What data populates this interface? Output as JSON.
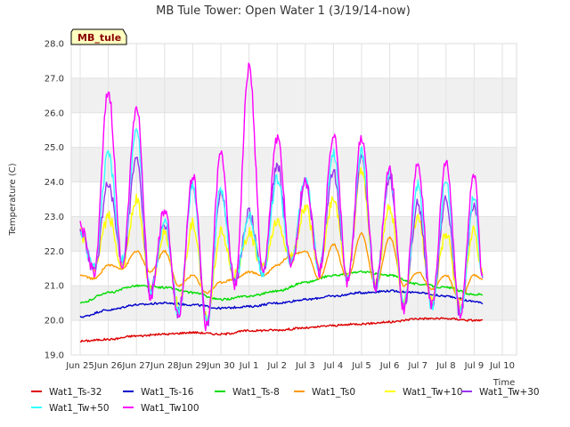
{
  "chart_data": {
    "type": "line",
    "title": "MB Tule Tower: Open Water 1 (3/19/14-now)",
    "xlabel": "Time",
    "ylabel": "Temperature (C)",
    "ylim": [
      19.0,
      28.0
    ],
    "xlim": [
      0,
      16
    ],
    "y_ticks": [
      "19.0",
      "20.0",
      "21.0",
      "22.0",
      "23.0",
      "24.0",
      "25.0",
      "26.0",
      "27.0",
      "28.0"
    ],
    "x_ticks": [
      {
        "label": "Jun 25",
        "value": 0
      },
      {
        "label": "Jun 26",
        "value": 1
      },
      {
        "label": "Jun 27",
        "value": 2
      },
      {
        "label": "Jun 28",
        "value": 3
      },
      {
        "label": "Jun 29",
        "value": 4
      },
      {
        "label": "Jun 30",
        "value": 5
      },
      {
        "label": "Jul 1",
        "value": 6
      },
      {
        "label": "Jul 2",
        "value": 7
      },
      {
        "label": "Jul 3",
        "value": 8
      },
      {
        "label": "Jul 4",
        "value": 9
      },
      {
        "label": "Jul 5",
        "value": 10
      },
      {
        "label": "Jul 6",
        "value": 11
      },
      {
        "label": "Jul 7",
        "value": 12
      },
      {
        "label": "Jul 8",
        "value": 13
      },
      {
        "label": "Jul 9",
        "value": 14
      },
      {
        "label": "Jul 10",
        "value": 15
      }
    ],
    "grid": true,
    "station_tag": "MB_tule",
    "daily_peaks_tw100": [
      26.6,
      26.2,
      23.2,
      24.2,
      24.8,
      27.3,
      25.3,
      24.1,
      25.4,
      25.3,
      24.4,
      24.5,
      24.6,
      24.3
    ],
    "daily_minima_tw100": [
      21.4,
      21.6,
      20.7,
      20.1,
      19.8,
      21.0,
      21.3,
      21.5,
      21.4,
      21.1,
      21.0,
      20.3,
      20.4,
      20.2
    ],
    "series": [
      {
        "name": "Wat1_Ts-32",
        "color": "#dd0000",
        "x": [
          0,
          1,
          2,
          3,
          4,
          5,
          6,
          7,
          8,
          9,
          10,
          11,
          12,
          13,
          14,
          14.3
        ],
        "values": [
          19.4,
          19.45,
          19.55,
          19.6,
          19.65,
          19.6,
          19.7,
          19.72,
          19.78,
          19.85,
          19.9,
          19.95,
          20.05,
          20.05,
          20.0,
          20.0
        ]
      },
      {
        "name": "Wat1_Ts-16",
        "color": "#0000cc",
        "x": [
          0,
          1,
          2,
          3,
          4,
          5,
          6,
          7,
          8,
          9,
          10,
          11,
          12,
          13,
          14,
          14.3
        ],
        "values": [
          20.1,
          20.3,
          20.45,
          20.5,
          20.45,
          20.35,
          20.4,
          20.5,
          20.6,
          20.7,
          20.8,
          20.85,
          20.8,
          20.7,
          20.55,
          20.5
        ]
      },
      {
        "name": "Wat1_Ts-8",
        "color": "#00dd00",
        "x": [
          0,
          1,
          2,
          3,
          4,
          5,
          6,
          7,
          8,
          9,
          10,
          11,
          12,
          13,
          14,
          14.3
        ],
        "values": [
          20.5,
          20.8,
          21.0,
          20.95,
          20.8,
          20.6,
          20.7,
          20.85,
          21.1,
          21.3,
          21.4,
          21.3,
          21.05,
          20.95,
          20.75,
          20.75
        ]
      },
      {
        "name": "Wat1_Ts0",
        "color": "#ff9900",
        "x": [
          0,
          0.5,
          1,
          1.5,
          2,
          2.5,
          3,
          3.5,
          4,
          4.5,
          5,
          5.5,
          6,
          6.5,
          7,
          7.5,
          8,
          8.5,
          9,
          9.5,
          10,
          10.5,
          11,
          11.5,
          12,
          12.5,
          13,
          13.5,
          14,
          14.3
        ],
        "values": [
          21.3,
          21.2,
          21.6,
          21.5,
          22.0,
          21.4,
          22.0,
          21.0,
          21.3,
          20.8,
          21.1,
          21.2,
          21.4,
          21.3,
          21.6,
          21.9,
          22.0,
          21.2,
          22.2,
          21.2,
          22.5,
          21.0,
          22.4,
          21.0,
          21.4,
          20.9,
          21.3,
          20.6,
          21.3,
          21.2
        ]
      },
      {
        "name": "Wat1_Tw+10",
        "color": "#ffff00",
        "x": [
          0,
          0.5,
          1,
          1.5,
          2,
          2.5,
          3,
          3.5,
          4,
          4.5,
          5,
          5.5,
          6,
          6.5,
          7,
          7.5,
          8,
          8.5,
          9,
          9.5,
          10,
          10.5,
          11,
          11.5,
          12,
          12.5,
          13,
          13.5,
          14,
          14.3
        ],
        "values": [
          22.5,
          21.4,
          23.0,
          21.6,
          23.5,
          20.9,
          22.6,
          20.4,
          22.8,
          20.1,
          22.6,
          21.3,
          22.5,
          21.5,
          22.8,
          21.8,
          23.3,
          21.5,
          23.5,
          21.3,
          24.3,
          21.1,
          23.3,
          20.6,
          23.0,
          20.6,
          22.5,
          20.4,
          22.6,
          21.3
        ]
      },
      {
        "name": "Wat1_Tw+30",
        "color": "#9933ee",
        "x": [
          0,
          0.5,
          1,
          1.5,
          2,
          2.5,
          3,
          3.5,
          4,
          4.5,
          5,
          5.5,
          6,
          6.5,
          7,
          7.5,
          8,
          8.5,
          9,
          9.5,
          10,
          10.5,
          11,
          11.5,
          12,
          12.5,
          13,
          13.5,
          14,
          14.3
        ],
        "values": [
          22.6,
          21.4,
          24.0,
          21.6,
          24.6,
          20.8,
          22.8,
          20.2,
          23.9,
          19.9,
          23.7,
          21.1,
          23.1,
          21.4,
          24.5,
          21.6,
          24.0,
          21.5,
          24.3,
          21.2,
          24.7,
          21.0,
          24.2,
          20.4,
          23.4,
          20.4,
          23.5,
          20.2,
          23.4,
          21.2
        ]
      },
      {
        "name": "Wat1_Tw+50",
        "color": "#33ffff",
        "x": [
          0,
          0.5,
          1,
          1.5,
          2,
          2.5,
          3,
          3.5,
          4,
          4.5,
          5,
          5.5,
          6,
          6.5,
          7,
          7.5,
          8,
          8.5,
          9,
          9.5,
          10,
          10.5,
          11,
          11.5,
          12,
          12.5,
          13,
          13.5,
          14,
          14.3
        ],
        "values": [
          22.6,
          21.5,
          24.8,
          21.7,
          25.5,
          20.8,
          22.9,
          20.2,
          23.9,
          19.9,
          23.8,
          21.1,
          23.0,
          21.4,
          24.1,
          21.6,
          24.1,
          21.5,
          24.8,
          21.2,
          24.9,
          21.0,
          24.3,
          20.4,
          23.9,
          20.4,
          24.0,
          20.2,
          23.6,
          21.2
        ]
      },
      {
        "name": "Wat1_Tw100",
        "color": "#ff00ff",
        "x": [
          0,
          0.5,
          1,
          1.5,
          2,
          2.5,
          3,
          3.5,
          4,
          4.5,
          5,
          5.5,
          6,
          6.5,
          7,
          7.5,
          8,
          8.5,
          9,
          9.5,
          10,
          10.5,
          11,
          11.5,
          12,
          12.5,
          13,
          13.5,
          14,
          14.3
        ],
        "values": [
          22.7,
          21.4,
          26.6,
          21.6,
          26.2,
          20.7,
          23.2,
          20.1,
          24.2,
          19.8,
          24.8,
          21.0,
          27.3,
          21.3,
          25.3,
          21.5,
          24.1,
          21.4,
          25.4,
          21.1,
          25.3,
          21.0,
          24.4,
          20.3,
          24.5,
          20.4,
          24.6,
          20.2,
          24.3,
          21.2
        ]
      }
    ]
  }
}
